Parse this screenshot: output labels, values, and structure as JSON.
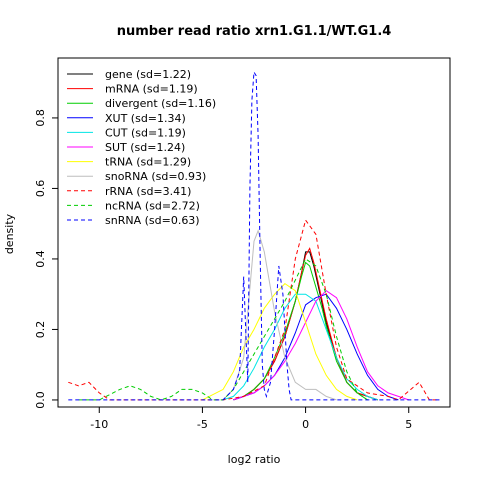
{
  "chart_data": {
    "type": "line",
    "title": "number read ratio xrn1.G1.1/WT.G1.4",
    "xlabel": "log2 ratio",
    "ylabel": "density",
    "xlim": [
      -12,
      7
    ],
    "ylim": [
      -0.02,
      0.97
    ],
    "xticks": [
      -10,
      -5,
      0,
      5
    ],
    "yticks": [
      0.0,
      0.2,
      0.4,
      0.6,
      0.8
    ],
    "ytick_labels": [
      "0.0",
      "0.2",
      "0.4",
      "0.6",
      "0.8"
    ],
    "grid": false,
    "legend_position": "top-left",
    "series": [
      {
        "name": "gene (sd=1.22)",
        "color": "#000000",
        "dash": "solid",
        "x": [
          -3.5,
          -3,
          -2.5,
          -2,
          -1.5,
          -1,
          -0.5,
          -0.2,
          0,
          0.2,
          0.4,
          0.7,
          1,
          1.5,
          2,
          2.5,
          3,
          3.5
        ],
        "y": [
          0.0,
          0.01,
          0.03,
          0.06,
          0.11,
          0.18,
          0.28,
          0.36,
          0.42,
          0.42,
          0.38,
          0.3,
          0.22,
          0.12,
          0.05,
          0.02,
          0.01,
          0.0
        ]
      },
      {
        "name": "mRNA (sd=1.19)",
        "color": "#ff0000",
        "dash": "solid",
        "x": [
          -3.5,
          -3,
          -2.5,
          -2,
          -1.5,
          -1,
          -0.5,
          -0.2,
          0,
          0.2,
          0.4,
          0.7,
          1,
          1.5,
          2,
          2.5,
          3,
          3.5
        ],
        "y": [
          0.0,
          0.01,
          0.03,
          0.06,
          0.11,
          0.18,
          0.28,
          0.36,
          0.41,
          0.43,
          0.39,
          0.31,
          0.23,
          0.12,
          0.05,
          0.02,
          0.01,
          0.0
        ]
      },
      {
        "name": "divergent (sd=1.16)",
        "color": "#00cd00",
        "dash": "solid",
        "x": [
          -3.5,
          -3,
          -2.5,
          -2,
          -1.5,
          -1,
          -0.5,
          -0.2,
          0,
          0.2,
          0.5,
          0.8,
          1,
          1.5,
          2,
          2.5,
          3
        ],
        "y": [
          0.0,
          0.01,
          0.03,
          0.06,
          0.12,
          0.19,
          0.28,
          0.35,
          0.39,
          0.38,
          0.32,
          0.26,
          0.21,
          0.11,
          0.05,
          0.02,
          0.0
        ]
      },
      {
        "name": "XUT (sd=1.34)",
        "color": "#0000ff",
        "dash": "solid",
        "x": [
          -3.5,
          -3,
          -2.5,
          -2,
          -1.5,
          -1,
          -0.5,
          0,
          0.5,
          1,
          1.5,
          2,
          2.5,
          3,
          3.5,
          4,
          4.5
        ],
        "y": [
          0.0,
          0.01,
          0.02,
          0.04,
          0.07,
          0.12,
          0.19,
          0.27,
          0.29,
          0.3,
          0.26,
          0.2,
          0.13,
          0.07,
          0.03,
          0.01,
          0.0
        ]
      },
      {
        "name": "CUT (sd=1.19)",
        "color": "#00e5e5",
        "dash": "solid",
        "x": [
          -4,
          -3.5,
          -3,
          -2.5,
          -2,
          -1.5,
          -1,
          -0.5,
          0,
          0.5,
          1,
          1.5,
          2,
          2.5,
          3,
          3.5
        ],
        "y": [
          0.0,
          0.01,
          0.04,
          0.09,
          0.15,
          0.2,
          0.26,
          0.3,
          0.3,
          0.28,
          0.2,
          0.12,
          0.06,
          0.03,
          0.01,
          0.0
        ]
      },
      {
        "name": "SUT (sd=1.24)",
        "color": "#ff00ff",
        "dash": "solid",
        "x": [
          -3.5,
          -3,
          -2.5,
          -2,
          -1.5,
          -1,
          -0.5,
          0,
          0.5,
          1,
          1.5,
          2,
          2.5,
          3,
          3.5,
          4,
          4.5,
          5
        ],
        "y": [
          0.0,
          0.01,
          0.02,
          0.04,
          0.07,
          0.11,
          0.16,
          0.22,
          0.28,
          0.31,
          0.29,
          0.23,
          0.15,
          0.08,
          0.04,
          0.02,
          0.01,
          0.0
        ]
      },
      {
        "name": "tRNA (sd=1.29)",
        "color": "#ffff00",
        "dash": "solid",
        "x": [
          -5,
          -4,
          -3.5,
          -3,
          -2.5,
          -2,
          -1.5,
          -1,
          -0.5,
          0,
          0.5,
          1,
          1.5,
          2,
          2.5
        ],
        "y": [
          0.0,
          0.03,
          0.08,
          0.15,
          0.2,
          0.26,
          0.3,
          0.33,
          0.31,
          0.22,
          0.13,
          0.07,
          0.03,
          0.01,
          0.0
        ]
      },
      {
        "name": "snoRNA (sd=0.93)",
        "color": "#bebebe",
        "dash": "solid",
        "x": [
          -4,
          -3.5,
          -3,
          -2.8,
          -2.5,
          -2.3,
          -2,
          -1.5,
          -1,
          -0.5,
          0,
          0.5,
          1,
          1.5
        ],
        "y": [
          0.0,
          0.03,
          0.12,
          0.25,
          0.45,
          0.48,
          0.42,
          0.25,
          0.12,
          0.05,
          0.03,
          0.03,
          0.01,
          0.0
        ]
      },
      {
        "name": "rRNA (sd=3.41)",
        "color": "#ff0000",
        "dash": "dashed",
        "x": [
          -11.5,
          -11,
          -10.5,
          -10,
          -9.5,
          -9,
          -8,
          -7,
          -6,
          -5,
          -4,
          -3,
          -2,
          -1,
          -0.5,
          0,
          0.5,
          1,
          1.5,
          2,
          3,
          4,
          4.5,
          5.5,
          6,
          6.5
        ],
        "y": [
          0.05,
          0.04,
          0.05,
          0.02,
          0.0,
          0.0,
          0.0,
          0.0,
          0.0,
          0.0,
          0.0,
          0.01,
          0.04,
          0.2,
          0.4,
          0.51,
          0.47,
          0.3,
          0.15,
          0.06,
          0.02,
          0.01,
          0.0,
          0.05,
          0.0,
          0.0
        ]
      },
      {
        "name": "ncRNA (sd=2.72)",
        "color": "#00cd00",
        "dash": "dashed",
        "x": [
          -11,
          -10,
          -9,
          -8.5,
          -8,
          -7.5,
          -7,
          -6.5,
          -6,
          -5.5,
          -5,
          -4.5,
          -4,
          -3.5,
          -3,
          -2.5,
          -2,
          -1.5,
          -1,
          -0.5,
          0,
          0.5,
          1,
          1.5,
          2,
          2.5,
          3
        ],
        "y": [
          0.0,
          0.0,
          0.03,
          0.04,
          0.03,
          0.01,
          0.0,
          0.01,
          0.03,
          0.03,
          0.02,
          0.0,
          0.0,
          0.03,
          0.08,
          0.13,
          0.18,
          0.23,
          0.28,
          0.34,
          0.4,
          0.38,
          0.3,
          0.18,
          0.08,
          0.02,
          0.0
        ]
      },
      {
        "name": "snRNA (sd=0.63)",
        "color": "#0000ff",
        "dash": "dashed",
        "x": [
          -11.5,
          -4,
          -3.5,
          -3.2,
          -3,
          -2.9,
          -2.8,
          -2.7,
          -2.6,
          -2.5,
          -2.4,
          -2.3,
          -2.2,
          -2.1,
          -2,
          -1.9,
          -1.7,
          -1.5,
          -1.3,
          -1.1,
          -1,
          -0.9,
          -0.8,
          -0.7,
          6.5
        ],
        "y": [
          0.0,
          0.0,
          0.03,
          0.08,
          0.35,
          0.2,
          0.05,
          0.6,
          0.85,
          0.93,
          0.92,
          0.75,
          0.4,
          0.1,
          0.03,
          0.01,
          0.05,
          0.2,
          0.38,
          0.3,
          0.2,
          0.1,
          0.03,
          0.0,
          0.0
        ]
      }
    ]
  }
}
